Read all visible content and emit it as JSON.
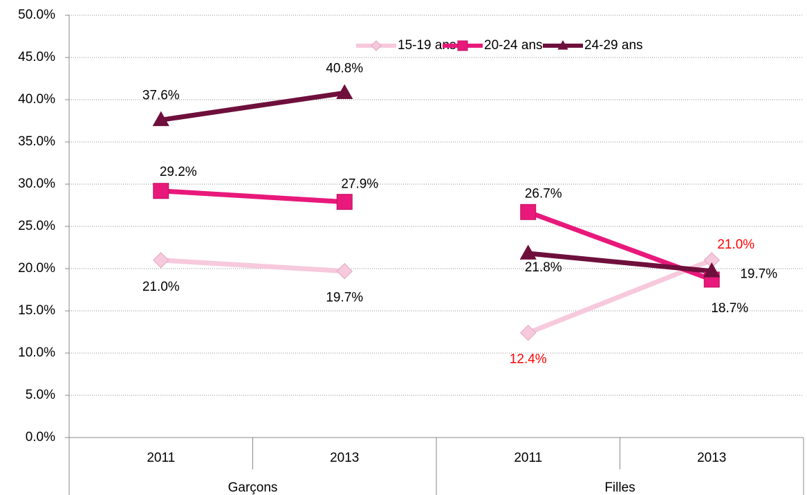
{
  "chart_data": {
    "type": "line",
    "groups": [
      {
        "label": "Garçons",
        "categories": [
          "2011",
          "2013"
        ]
      },
      {
        "label": "Filles",
        "categories": [
          "2011",
          "2013"
        ]
      }
    ],
    "series": [
      {
        "name": "15-19 ans",
        "color": "#f7c9dc",
        "marker": "diamond",
        "values": [
          [
            21.0,
            19.7
          ],
          [
            12.4,
            21.0
          ]
        ],
        "value_labels": [
          [
            "21.0%",
            "19.7%"
          ],
          [
            "12.4%",
            "21.0%"
          ]
        ],
        "value_label_colors": [
          [
            "#000000",
            "#000000"
          ],
          [
            "#ff0000",
            "#ff0000"
          ]
        ]
      },
      {
        "name": "20-24 ans",
        "color": "#e8197b",
        "marker": "square",
        "values": [
          [
            29.2,
            27.9
          ],
          [
            26.7,
            18.7
          ]
        ],
        "value_labels": [
          [
            "29.2%",
            "27.9%"
          ],
          [
            "26.7%",
            "18.7%"
          ]
        ],
        "value_label_colors": [
          [
            "#000000",
            "#000000"
          ],
          [
            "#000000",
            "#000000"
          ]
        ]
      },
      {
        "name": "24-29 ans",
        "color": "#6e0f3c",
        "marker": "triangle",
        "values": [
          [
            37.6,
            40.8
          ],
          [
            21.8,
            19.7
          ]
        ],
        "value_labels": [
          [
            "37.6%",
            "40.8%"
          ],
          [
            "21.8%",
            "19.7%"
          ]
        ],
        "value_label_colors": [
          [
            "#000000",
            "#000000"
          ],
          [
            "#000000",
            "#000000"
          ]
        ]
      }
    ],
    "ylim": [
      0,
      50
    ],
    "yticks": [
      {
        "value": 0,
        "label": "0.0%"
      },
      {
        "value": 5,
        "label": "5.0%"
      },
      {
        "value": 10,
        "label": "10.0%"
      },
      {
        "value": 15,
        "label": "15.0%"
      },
      {
        "value": 20,
        "label": "20.0%"
      },
      {
        "value": 25,
        "label": "25.0%"
      },
      {
        "value": 30,
        "label": "30.0%"
      },
      {
        "value": 35,
        "label": "35.0%"
      },
      {
        "value": 40,
        "label": "40.0%"
      },
      {
        "value": 45,
        "label": "45.0%"
      },
      {
        "value": 50,
        "label": "50.0%"
      }
    ],
    "grid": true,
    "legend": "top"
  }
}
